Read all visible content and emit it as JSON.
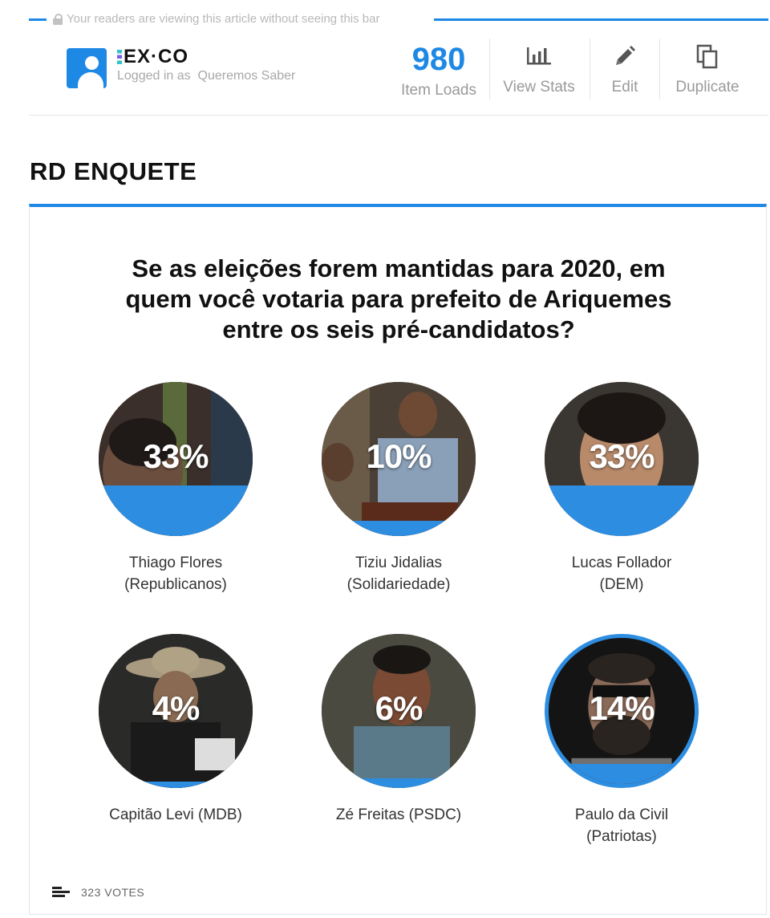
{
  "notice": {
    "text": "Your readers are viewing this article without seeing this bar"
  },
  "header": {
    "brand": "EX·CO",
    "logged_in_prefix": "Logged in as",
    "user": "Queremos Saber",
    "item_loads": {
      "value": "980",
      "label": "Item Loads"
    },
    "actions": [
      {
        "label": "View Stats",
        "icon": "bar-chart-icon"
      },
      {
        "label": "Edit",
        "icon": "pencil-icon"
      },
      {
        "label": "Duplicate",
        "icon": "duplicate-icon"
      }
    ]
  },
  "section": {
    "title": "RD ENQUETE"
  },
  "poll": {
    "question": "Se as eleições forem mantidas para 2020, em quem você votaria para prefeito de Ariquemes entre os seis pré-candidatos?",
    "options": [
      {
        "percent": "33%",
        "value": 33,
        "line1": "Thiago Flores",
        "line2": "(Republicanos)"
      },
      {
        "percent": "10%",
        "value": 10,
        "line1": "Tiziu Jidalias",
        "line2": "(Solidariedade)"
      },
      {
        "percent": "33%",
        "value": 33,
        "line1": "Lucas Follador",
        "line2": "(DEM)"
      },
      {
        "percent": "4%",
        "value": 4,
        "line1": "Capitão Levi (MDB)",
        "line2": ""
      },
      {
        "percent": "6%",
        "value": 6,
        "line1": "Zé Freitas (PSDC)",
        "line2": ""
      },
      {
        "percent": "14%",
        "value": 14,
        "line1": "Paulo da Civil",
        "line2": "(Patriotas)",
        "selected": true
      }
    ],
    "votes": "323 VOTES"
  },
  "colors": {
    "accent": "#1e88e5",
    "fill": "#2d8de0"
  }
}
